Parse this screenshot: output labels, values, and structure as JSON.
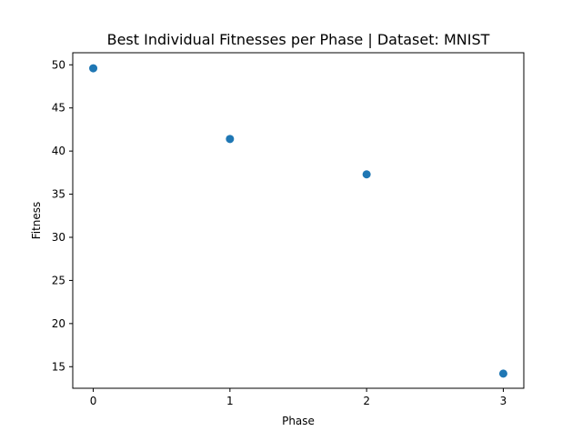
{
  "chart_data": {
    "type": "scatter",
    "title": "Best Individual Fitnesses per Phase | Dataset: MNIST",
    "xlabel": "Phase",
    "ylabel": "Fitness",
    "x": [
      0,
      1,
      2,
      3
    ],
    "y": [
      49.6,
      41.4,
      37.3,
      14.2
    ],
    "xlim": [
      -0.15,
      3.15
    ],
    "ylim": [
      12.5,
      51.4
    ],
    "xticks": [
      0,
      1,
      2,
      3
    ],
    "yticks": [
      15,
      20,
      25,
      30,
      35,
      40,
      45,
      50
    ],
    "grid": false,
    "legend": false,
    "colors": {
      "marker": "#1f77b4"
    }
  }
}
